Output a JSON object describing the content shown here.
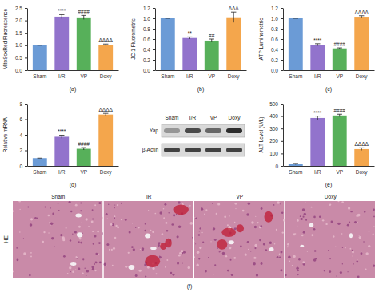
{
  "chart_data": [
    {
      "type": "bar",
      "panel_label": "(a)",
      "y_label": "MitoSoxRed Fluorescence",
      "categories": [
        "Sham",
        "I/R",
        "VP",
        "Doxy"
      ],
      "values": [
        1.0,
        2.15,
        2.12,
        1.02
      ],
      "errors": [
        0,
        0.08,
        0.08,
        0.03
      ],
      "annotations": [
        null,
        "****",
        "####",
        "ΔΔΔΔ"
      ],
      "colors": [
        "#6b9bd6",
        "#9273cc",
        "#57b05a",
        "#f4a64c"
      ],
      "ylim": [
        0,
        2.5
      ],
      "yticks": [
        {
          "value": 0,
          "label": "0.0"
        },
        0.5,
        {
          "value": 1,
          "label": "1.0"
        },
        1.5,
        {
          "value": 2,
          "label": "2.0"
        },
        2.5
      ]
    },
    {
      "type": "bar",
      "panel_label": "(b)",
      "y_label": "JC-1 Fluorometric",
      "categories": [
        "Sham",
        "I/R",
        "VP",
        "Doxy"
      ],
      "values": [
        1.0,
        0.62,
        0.57,
        1.02
      ],
      "errors": [
        0,
        0.02,
        0.03,
        0.1
      ],
      "annotations": [
        null,
        "**",
        "##",
        "ΔΔΔ"
      ],
      "colors": [
        "#6b9bd6",
        "#9273cc",
        "#57b05a",
        "#f4a64c"
      ],
      "ylim": [
        0,
        1.2
      ],
      "yticks": [
        {
          "value": 0,
          "label": "0.0"
        },
        0.2,
        0.4,
        0.6,
        0.8,
        {
          "value": 1,
          "label": "1.0"
        },
        1.2
      ]
    },
    {
      "type": "bar",
      "panel_label": "(c)",
      "y_label": "ATP Luminometric",
      "categories": [
        "Sham",
        "I/R",
        "VP",
        "Doxy"
      ],
      "values": [
        1.0,
        0.49,
        0.42,
        1.03
      ],
      "errors": [
        0,
        0.02,
        0.01,
        0.02
      ],
      "annotations": [
        null,
        "****",
        "####",
        "ΔΔΔΔ"
      ],
      "colors": [
        "#6b9bd6",
        "#9273cc",
        "#57b05a",
        "#f4a64c"
      ],
      "ylim": [
        0,
        1.2
      ],
      "yticks": [
        {
          "value": 0,
          "label": "0.0"
        },
        0.2,
        0.4,
        0.6,
        0.8,
        {
          "value": 1,
          "label": "1.0"
        },
        1.2
      ]
    },
    {
      "type": "bar",
      "panel_label": "(d)",
      "y_label": "Relative mRNA",
      "categories": [
        "Sham",
        "I/R",
        "VP",
        "Doxy"
      ],
      "values": [
        1.0,
        3.75,
        2.2,
        6.6
      ],
      "errors": [
        0,
        0.2,
        0.15,
        0.15
      ],
      "annotations": [
        null,
        "****",
        "####",
        "ΔΔΔΔ"
      ],
      "colors": [
        "#6b9bd6",
        "#9273cc",
        "#57b05a",
        "#f4a64c"
      ],
      "ylim": [
        0,
        8
      ],
      "yticks": [
        0,
        2,
        4,
        6,
        8
      ]
    },
    {
      "type": "bar",
      "panel_label": "(e)",
      "y_label": "ALT Level (U/L)",
      "categories": [
        "Sham",
        "I/R",
        "VP",
        "Doxy"
      ],
      "values": [
        15,
        385,
        405,
        135
      ],
      "errors": [
        5,
        15,
        10,
        10
      ],
      "annotations": [
        null,
        "****",
        "####",
        "ΔΔΔΔ"
      ],
      "colors": [
        "#6b9bd6",
        "#9273cc",
        "#57b05a",
        "#f4a64c"
      ],
      "ylim": [
        0,
        500
      ],
      "yticks": [
        0,
        100,
        200,
        300,
        400,
        500
      ]
    }
  ],
  "blot": {
    "lanes": [
      "Sham",
      "I/R",
      "VP",
      "Doxy"
    ],
    "rows": [
      "Yap",
      "β-Actin"
    ]
  },
  "histology": {
    "stain": "HE",
    "panels": [
      "Sham",
      "IR",
      "VP",
      "Doxy"
    ],
    "panel_label": "(f)"
  }
}
